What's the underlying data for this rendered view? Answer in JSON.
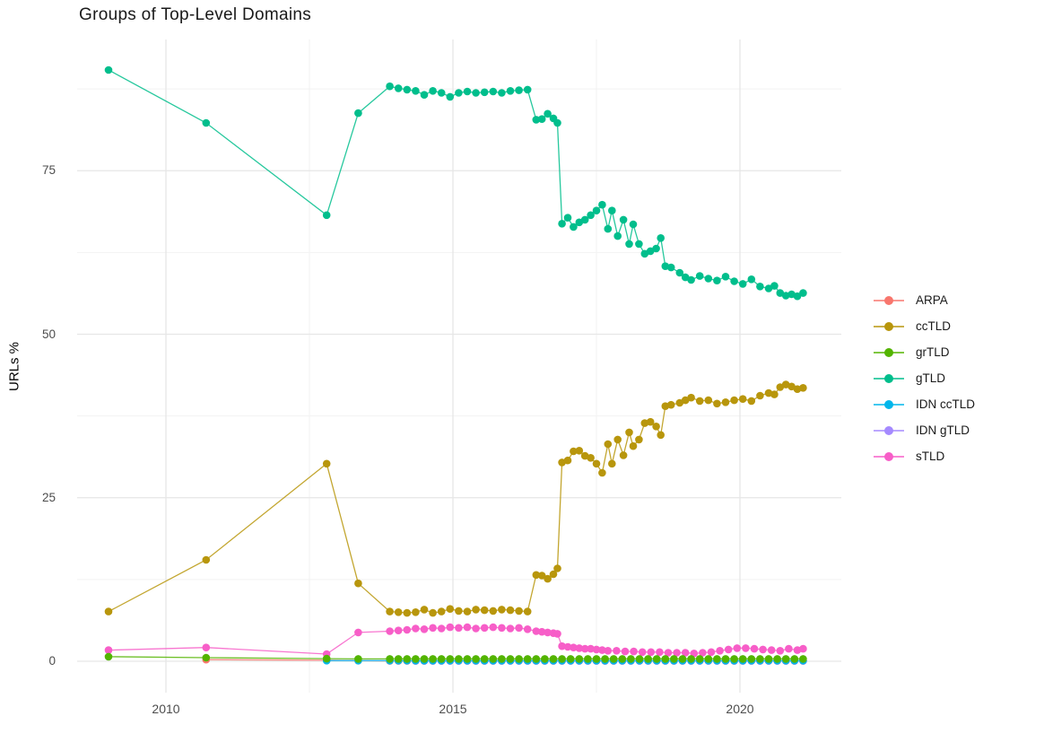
{
  "title": "Groups of Top-Level Domains",
  "chart_data": {
    "type": "line",
    "title": "Groups of Top-Level Domains",
    "xlabel": "",
    "ylabel": "URLs %",
    "x_ticks": [
      2010,
      2015,
      2020
    ],
    "x_minor_ticks": [
      2012.5,
      2017.5
    ],
    "y_ticks": [
      0,
      25,
      50,
      75
    ],
    "y_minor_ticks": [
      12.5,
      37.5,
      62.5,
      87.5
    ],
    "xlim": [
      2008.5,
      2021.6
    ],
    "ylim": [
      -4.5,
      95
    ],
    "grid": true,
    "legend_position": "right",
    "legend_title": "",
    "series": [
      {
        "name": "ARPA",
        "color": "#F8766D",
        "points": [
          [
            2010.7,
            0.25
          ],
          [
            2012.8,
            0.15
          ],
          [
            2013.35,
            0.1
          ]
        ],
        "flat": {
          "from": 2013.9,
          "to": 2021.1,
          "step": 0.15,
          "value": 0.05
        }
      },
      {
        "name": "ccTLD",
        "color": "#B8960C",
        "points": [
          [
            2009.0,
            7.6
          ],
          [
            2010.7,
            15.5
          ],
          [
            2012.8,
            30.2
          ],
          [
            2013.35,
            11.9
          ],
          [
            2013.9,
            7.6
          ],
          [
            2014.05,
            7.5
          ],
          [
            2014.2,
            7.4
          ],
          [
            2014.35,
            7.5
          ],
          [
            2014.5,
            7.9
          ],
          [
            2014.65,
            7.4
          ],
          [
            2014.8,
            7.6
          ],
          [
            2014.95,
            8.0
          ],
          [
            2015.1,
            7.7
          ],
          [
            2015.25,
            7.6
          ],
          [
            2015.4,
            7.9
          ],
          [
            2015.55,
            7.8
          ],
          [
            2015.7,
            7.7
          ],
          [
            2015.85,
            7.9
          ],
          [
            2016.0,
            7.8
          ],
          [
            2016.15,
            7.7
          ],
          [
            2016.3,
            7.6
          ],
          [
            2016.45,
            13.2
          ],
          [
            2016.55,
            13.1
          ],
          [
            2016.65,
            12.6
          ],
          [
            2016.75,
            13.3
          ],
          [
            2016.82,
            14.2
          ],
          [
            2016.9,
            30.4
          ],
          [
            2017.0,
            30.7
          ],
          [
            2017.1,
            32.1
          ],
          [
            2017.2,
            32.2
          ],
          [
            2017.3,
            31.4
          ],
          [
            2017.4,
            31.1
          ],
          [
            2017.5,
            30.2
          ],
          [
            2017.6,
            28.8
          ],
          [
            2017.7,
            33.2
          ],
          [
            2017.77,
            30.2
          ],
          [
            2017.87,
            33.9
          ],
          [
            2017.97,
            31.5
          ],
          [
            2018.07,
            35.0
          ],
          [
            2018.14,
            32.9
          ],
          [
            2018.24,
            33.9
          ],
          [
            2018.34,
            36.4
          ],
          [
            2018.44,
            36.6
          ],
          [
            2018.54,
            35.9
          ],
          [
            2018.62,
            34.6
          ],
          [
            2018.7,
            39.0
          ],
          [
            2018.8,
            39.2
          ],
          [
            2018.95,
            39.5
          ],
          [
            2019.05,
            39.9
          ],
          [
            2019.15,
            40.3
          ],
          [
            2019.3,
            39.8
          ],
          [
            2019.45,
            39.9
          ],
          [
            2019.6,
            39.4
          ],
          [
            2019.75,
            39.6
          ],
          [
            2019.9,
            39.9
          ],
          [
            2020.05,
            40.1
          ],
          [
            2020.2,
            39.8
          ],
          [
            2020.35,
            40.6
          ],
          [
            2020.5,
            41.0
          ],
          [
            2020.6,
            40.8
          ],
          [
            2020.7,
            41.9
          ],
          [
            2020.8,
            42.3
          ],
          [
            2020.9,
            42.0
          ],
          [
            2021.0,
            41.6
          ],
          [
            2021.1,
            41.8
          ]
        ]
      },
      {
        "name": "grTLD",
        "color": "#53B400",
        "points": [
          [
            2009.0,
            0.7
          ],
          [
            2010.7,
            0.55
          ],
          [
            2012.8,
            0.4
          ],
          [
            2013.35,
            0.35
          ]
        ],
        "flat": {
          "from": 2013.9,
          "to": 2021.1,
          "step": 0.15,
          "value": 0.35
        }
      },
      {
        "name": "gTLD",
        "color": "#00BE8C",
        "points": [
          [
            2009.0,
            90.4
          ],
          [
            2010.7,
            82.3
          ],
          [
            2012.8,
            68.2
          ],
          [
            2013.35,
            83.8
          ],
          [
            2013.9,
            87.9
          ],
          [
            2014.05,
            87.6
          ],
          [
            2014.2,
            87.4
          ],
          [
            2014.35,
            87.2
          ],
          [
            2014.5,
            86.6
          ],
          [
            2014.65,
            87.2
          ],
          [
            2014.8,
            86.9
          ],
          [
            2014.95,
            86.3
          ],
          [
            2015.1,
            86.9
          ],
          [
            2015.25,
            87.1
          ],
          [
            2015.4,
            86.9
          ],
          [
            2015.55,
            87.0
          ],
          [
            2015.7,
            87.1
          ],
          [
            2015.85,
            86.9
          ],
          [
            2016.0,
            87.2
          ],
          [
            2016.15,
            87.3
          ],
          [
            2016.3,
            87.4
          ],
          [
            2016.45,
            82.8
          ],
          [
            2016.55,
            82.9
          ],
          [
            2016.65,
            83.7
          ],
          [
            2016.75,
            83.0
          ],
          [
            2016.82,
            82.3
          ],
          [
            2016.9,
            66.9
          ],
          [
            2017.0,
            67.8
          ],
          [
            2017.1,
            66.4
          ],
          [
            2017.2,
            67.1
          ],
          [
            2017.3,
            67.5
          ],
          [
            2017.4,
            68.2
          ],
          [
            2017.5,
            68.9
          ],
          [
            2017.6,
            69.8
          ],
          [
            2017.7,
            66.1
          ],
          [
            2017.77,
            68.9
          ],
          [
            2017.87,
            65.0
          ],
          [
            2017.97,
            67.5
          ],
          [
            2018.07,
            63.8
          ],
          [
            2018.14,
            66.8
          ],
          [
            2018.24,
            63.8
          ],
          [
            2018.34,
            62.3
          ],
          [
            2018.44,
            62.7
          ],
          [
            2018.54,
            63.1
          ],
          [
            2018.62,
            64.7
          ],
          [
            2018.7,
            60.4
          ],
          [
            2018.8,
            60.2
          ],
          [
            2018.95,
            59.4
          ],
          [
            2019.05,
            58.7
          ],
          [
            2019.15,
            58.3
          ],
          [
            2019.3,
            58.9
          ],
          [
            2019.45,
            58.5
          ],
          [
            2019.6,
            58.2
          ],
          [
            2019.75,
            58.8
          ],
          [
            2019.9,
            58.1
          ],
          [
            2020.05,
            57.7
          ],
          [
            2020.2,
            58.4
          ],
          [
            2020.35,
            57.3
          ],
          [
            2020.5,
            57.0
          ],
          [
            2020.6,
            57.4
          ],
          [
            2020.7,
            56.3
          ],
          [
            2020.8,
            55.9
          ],
          [
            2020.9,
            56.1
          ],
          [
            2021.0,
            55.8
          ],
          [
            2021.1,
            56.3
          ]
        ]
      },
      {
        "name": "IDN ccTLD",
        "color": "#00B6EB",
        "points": [
          [
            2012.8,
            0.1
          ],
          [
            2013.35,
            0.1
          ]
        ],
        "flat": {
          "from": 2013.9,
          "to": 2021.1,
          "step": 0.15,
          "value": 0.1
        }
      },
      {
        "name": "IDN gTLD",
        "color": "#A58AFF",
        "points": [],
        "flat": {
          "from": 2014.35,
          "to": 2021.1,
          "step": 0.15,
          "value": 0.05
        }
      },
      {
        "name": "sTLD",
        "color": "#F75EC8",
        "points": [
          [
            2009.0,
            1.7
          ],
          [
            2010.7,
            2.1
          ],
          [
            2012.8,
            1.1
          ],
          [
            2013.35,
            4.4
          ],
          [
            2013.9,
            4.6
          ],
          [
            2014.05,
            4.7
          ],
          [
            2014.2,
            4.8
          ],
          [
            2014.35,
            5.0
          ],
          [
            2014.5,
            4.9
          ],
          [
            2014.65,
            5.1
          ],
          [
            2014.8,
            5.0
          ],
          [
            2014.95,
            5.2
          ],
          [
            2015.1,
            5.1
          ],
          [
            2015.25,
            5.2
          ],
          [
            2015.4,
            5.0
          ],
          [
            2015.55,
            5.1
          ],
          [
            2015.7,
            5.2
          ],
          [
            2015.85,
            5.1
          ],
          [
            2016.0,
            5.0
          ],
          [
            2016.15,
            5.1
          ],
          [
            2016.3,
            4.9
          ],
          [
            2016.45,
            4.6
          ],
          [
            2016.55,
            4.5
          ],
          [
            2016.65,
            4.4
          ],
          [
            2016.75,
            4.3
          ],
          [
            2016.82,
            4.2
          ],
          [
            2016.9,
            2.3
          ],
          [
            2017.0,
            2.2
          ],
          [
            2017.1,
            2.1
          ],
          [
            2017.2,
            2.0
          ],
          [
            2017.3,
            1.9
          ],
          [
            2017.4,
            1.9
          ],
          [
            2017.5,
            1.8
          ],
          [
            2017.6,
            1.7
          ],
          [
            2017.7,
            1.6
          ],
          [
            2017.85,
            1.6
          ],
          [
            2018.0,
            1.5
          ],
          [
            2018.15,
            1.5
          ],
          [
            2018.3,
            1.4
          ],
          [
            2018.45,
            1.4
          ],
          [
            2018.6,
            1.4
          ],
          [
            2018.75,
            1.3
          ],
          [
            2018.9,
            1.3
          ],
          [
            2019.05,
            1.3
          ],
          [
            2019.2,
            1.2
          ],
          [
            2019.35,
            1.3
          ],
          [
            2019.5,
            1.4
          ],
          [
            2019.65,
            1.6
          ],
          [
            2019.8,
            1.8
          ],
          [
            2019.95,
            2.0
          ],
          [
            2020.1,
            2.0
          ],
          [
            2020.25,
            1.9
          ],
          [
            2020.4,
            1.8
          ],
          [
            2020.55,
            1.7
          ],
          [
            2020.7,
            1.6
          ],
          [
            2020.85,
            1.9
          ],
          [
            2021.0,
            1.7
          ],
          [
            2021.1,
            1.9
          ]
        ]
      }
    ]
  },
  "colors": {
    "grid_major": "#e6e6e6",
    "grid_minor": "#f2f2f2",
    "tick_text": "#4d4d4d",
    "title_text": "#1a1a1a"
  }
}
